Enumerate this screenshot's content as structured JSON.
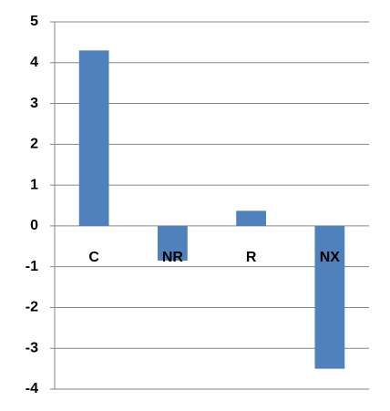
{
  "chart_data": {
    "type": "bar",
    "categories": [
      "C",
      "NR",
      "R",
      "NX"
    ],
    "values": [
      4.3,
      -0.85,
      0.37,
      -3.5
    ],
    "color": "#4f81bd",
    "ylim": [
      -4,
      5
    ],
    "yticks": [
      -4,
      -3,
      -2,
      -1,
      0,
      1,
      2,
      3,
      4,
      5
    ],
    "grid": true
  }
}
